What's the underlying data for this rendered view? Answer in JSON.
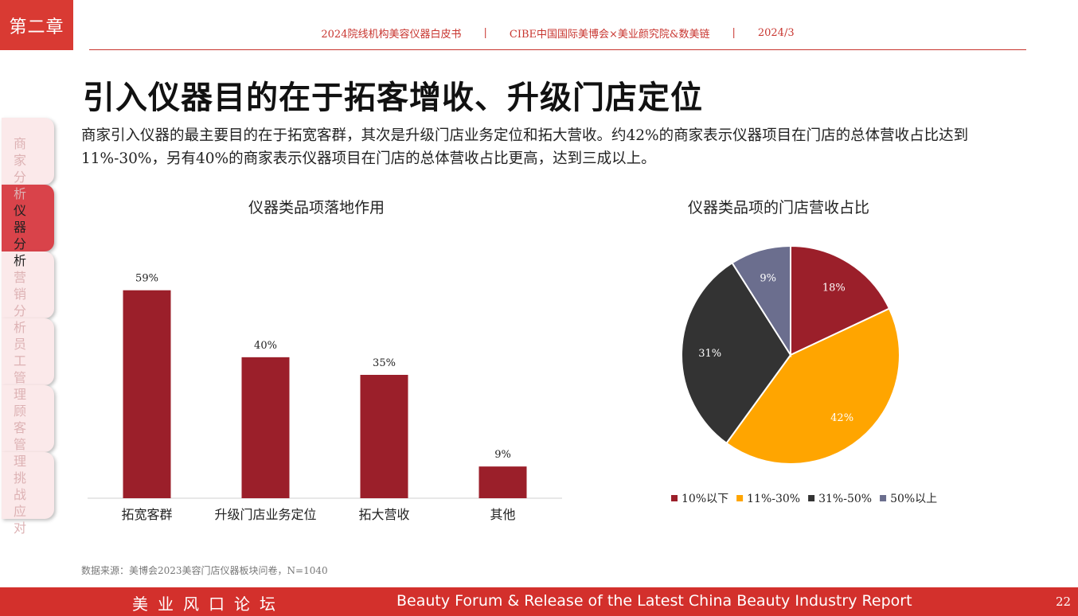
{
  "chapter": "第二章",
  "header": {
    "items": [
      "2024院线机构美容仪器白皮书",
      "CIBE中国国际美博会×美业颜究院&数美链",
      "2024/3"
    ],
    "separator": "|"
  },
  "title": "引入仪器目的在于拓客增收、升级门店定位",
  "intro": "商家引入仪器的最主要目的在于拓宽客群，其次是升级门店业务定位和拓大营收。约42%的商家表示仪器项目在门店的总体营收占比达到11%-30%，另有40%的商家表示仪器项目在门店的总体营收占比更高，达到三成以上。",
  "sidebar": {
    "texts": [
      "商家分析",
      "仪器分析",
      "营销分析",
      "员工管理",
      "顾客管理",
      "挑战应对"
    ],
    "active_index": 1
  },
  "chart_data": [
    {
      "type": "bar",
      "title": "仪器类品项落地作用",
      "categories": [
        "拓宽客群",
        "升级门店业务定位",
        "拓大营收",
        "其他"
      ],
      "values": [
        59,
        40,
        35,
        9
      ],
      "labels": [
        "59%",
        "40%",
        "35%",
        "9%"
      ],
      "unit": "%",
      "ylim": [
        0,
        70
      ],
      "grid": false,
      "color": "#9b1f2a"
    },
    {
      "type": "pie",
      "title": "仪器类品项的门店营收占比",
      "categories": [
        "10%以下",
        "11%-30%",
        "31%-50%",
        "50%以上"
      ],
      "values": [
        18,
        42,
        31,
        9
      ],
      "labels": [
        "18%",
        "42%",
        "31%",
        "9%"
      ],
      "colors": [
        "#9b1f2a",
        "#ffa500",
        "#333333",
        "#6b6e8e"
      ],
      "legend": "bottom"
    }
  ],
  "source": "数据来源：美博会2023美容门店仪器板块问卷，N=1040",
  "footer": {
    "cn": "美业风口论坛",
    "en": "Beauty Forum & Release of the Latest China Beauty Industry Report",
    "page": "22"
  }
}
